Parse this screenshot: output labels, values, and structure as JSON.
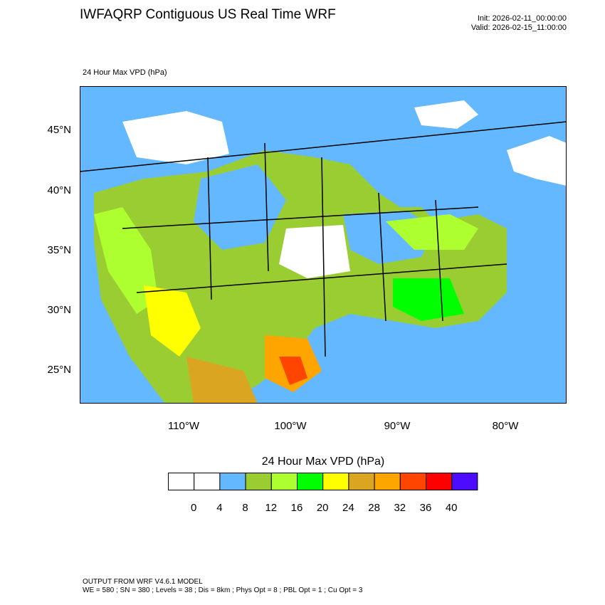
{
  "header": {
    "title": "IWFAQRP Contiguous US Real Time WRF",
    "init": "Init: 2026-02-11_00:00:00",
    "valid": "Valid: 2026-02-15_11:00:00",
    "field_label": "24 Hour Max VPD   (hPa)"
  },
  "axes": {
    "lat_labels": [
      "45°N",
      "40°N",
      "35°N",
      "30°N",
      "25°N"
    ],
    "lon_labels": [
      "110°W",
      "100°W",
      "90°W",
      "80°W"
    ]
  },
  "colorbar": {
    "title": "24 Hour Max VPD  (hPa)",
    "labels": [
      "0",
      "4",
      "8",
      "12",
      "16",
      "20",
      "24",
      "28",
      "32",
      "36",
      "40"
    ],
    "colors": [
      "#ffffff",
      "#ffffff",
      "#63b8ff",
      "#9acd32",
      "#adff2f",
      "#00ff00",
      "#ffff00",
      "#daa520",
      "#ffa500",
      "#ff4500",
      "#ff0000",
      "#4b0cff"
    ]
  },
  "footer": {
    "line1": "OUTPUT FROM WRF V4.6.1 MODEL",
    "line2": "WE = 580 ; SN = 380 ; Levels = 38 ; Dis = 8km ; Phys Opt = 8 ; PBL Opt = 1 ; Cu Opt = 3"
  }
}
